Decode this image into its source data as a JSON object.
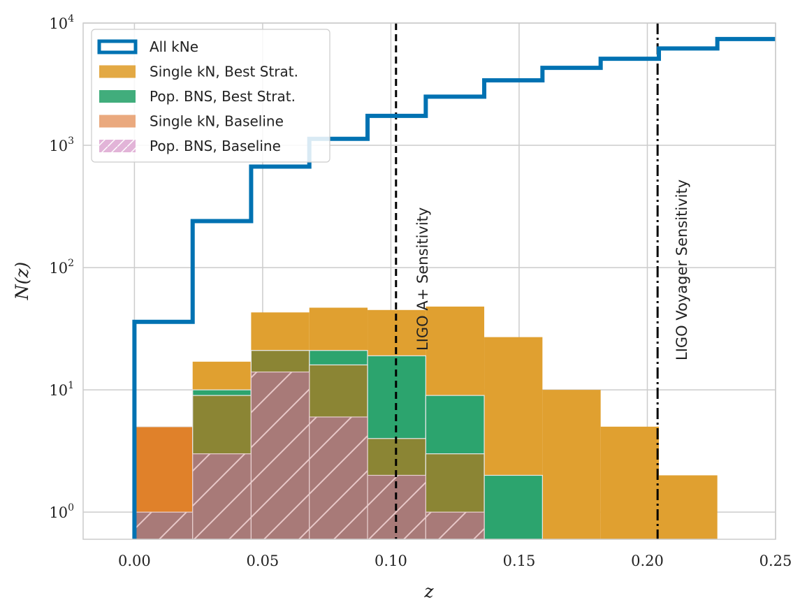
{
  "chart_data": {
    "type": "histogram",
    "xlabel": "z",
    "ylabel": "N(z)",
    "xlim": [
      -0.02,
      0.25
    ],
    "ylim": [
      0.6,
      10000
    ],
    "yscale": "log",
    "grid": true,
    "legend_position": "top-left",
    "x_ticks": [
      "0.00",
      "0.05",
      "0.10",
      "0.15",
      "0.20",
      "0.25"
    ],
    "x_tick_values": [
      0,
      0.05,
      0.1,
      0.15,
      0.2,
      0.25
    ],
    "y_ticks": [
      {
        "value": 1,
        "base": "10",
        "exp": "0"
      },
      {
        "value": 10,
        "base": "10",
        "exp": "1"
      },
      {
        "value": 100,
        "base": "10",
        "exp": "2"
      },
      {
        "value": 1000,
        "base": "10",
        "exp": "3"
      },
      {
        "value": 10000,
        "base": "10",
        "exp": "4"
      }
    ],
    "bin_edges": [
      0.0,
      0.0227,
      0.0455,
      0.0682,
      0.0909,
      0.1136,
      0.1364,
      0.1591,
      0.1818,
      0.2045,
      0.2273,
      0.25
    ],
    "series": [
      {
        "name": "Single kN, Best Strat.",
        "kind": "filled",
        "color": "#e0a030",
        "values": [
          5,
          17,
          43,
          47,
          45,
          48,
          27,
          10,
          5,
          2,
          0
        ]
      },
      {
        "name": "Pop. BNS, Best Strat.",
        "kind": "filled",
        "color": "#2ca46e",
        "values": [
          1,
          10,
          21,
          21,
          19,
          9,
          2,
          0,
          0,
          0,
          0
        ]
      },
      {
        "name": "Single kN, Baseline",
        "kind": "filled",
        "color": "#e0812a",
        "values": [
          5,
          9,
          21,
          16,
          4,
          3,
          0,
          0,
          0,
          0,
          0
        ]
      },
      {
        "name": "Pop. BNS, Baseline",
        "kind": "hatched",
        "color": "#a87a78",
        "values": [
          1,
          3,
          14,
          6,
          2,
          1,
          0,
          0,
          0,
          0,
          0
        ]
      },
      {
        "name": "All kNe",
        "kind": "step",
        "color": "#0072b2",
        "values": [
          36,
          240,
          670,
          1130,
          1740,
          2500,
          3400,
          4300,
          5100,
          6200,
          7400
        ]
      }
    ],
    "overlap_color": "#8b8534",
    "legend": [
      {
        "label": "All kNe",
        "kind": "step",
        "color": "#0072b2"
      },
      {
        "label": "Single kN, Best Strat.",
        "kind": "filled",
        "color": "#e0a030"
      },
      {
        "label": "Pop. BNS, Best Strat.",
        "kind": "filled",
        "color": "#2ca46e"
      },
      {
        "label": "Single kN, Baseline",
        "kind": "filled",
        "color": "#e8a070"
      },
      {
        "label": "Pop. BNS, Baseline",
        "kind": "hatched",
        "color": "#e2b4d8"
      }
    ],
    "annotations": [
      {
        "label": "LIGO A+ Sensitivity",
        "x": 0.102,
        "style": "dashed"
      },
      {
        "label": "LIGO Voyager Sensitivity",
        "x": 0.204,
        "style": "dashdot"
      }
    ]
  }
}
